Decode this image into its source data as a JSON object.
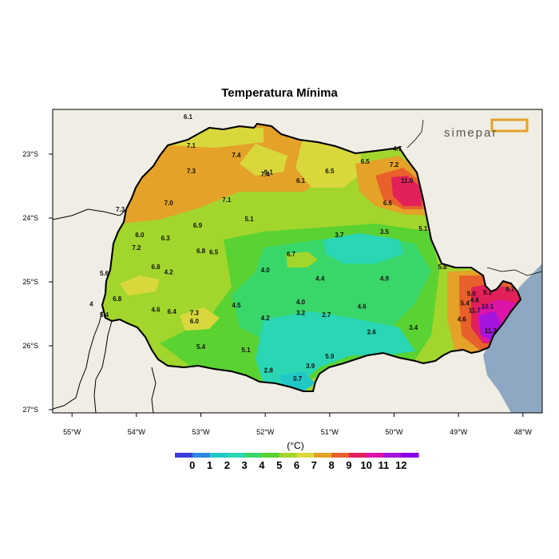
{
  "title": "Temperatura Mínima",
  "logo_text": "simepar",
  "colorbar": {
    "unit": "(°C)",
    "labels": [
      "0",
      "1",
      "2",
      "3",
      "4",
      "5",
      "6",
      "7",
      "8",
      "9",
      "10",
      "11",
      "12"
    ],
    "colors": [
      "#3c3cdc",
      "#2f86e0",
      "#22c8c8",
      "#2ad6b4",
      "#39d66a",
      "#5ad232",
      "#a2d62c",
      "#d8d83c",
      "#e4a228",
      "#e8602c",
      "#e2205a",
      "#dc14a8",
      "#a414dc",
      "#8a00e6"
    ]
  },
  "axes": {
    "x_ticks": [
      "55°W",
      "54°W",
      "53°W",
      "52°W",
      "51°W",
      "50°W",
      "49°W",
      "48°W"
    ],
    "y_ticks": [
      "23°S",
      "24°S",
      "25°S",
      "26°S",
      "27°S"
    ],
    "x_values": [
      -55,
      -54,
      -53,
      -52,
      -51,
      -50,
      -49,
      -48
    ],
    "y_values": [
      -23,
      -24,
      -25,
      -26,
      -27
    ],
    "lon_range": [
      -55.3,
      -47.7
    ],
    "lat_range": [
      -27.05,
      -22.3
    ]
  },
  "colors": {
    "ocean": "#8ea7c2",
    "land_outside": "#efede4",
    "border": "#000000"
  },
  "stations": [
    {
      "lon": -53.2,
      "lat": -22.45,
      "value": "6.1"
    },
    {
      "lon": -53.15,
      "lat": -22.9,
      "value": "7.1"
    },
    {
      "lon": -52.45,
      "lat": -23.05,
      "value": "7.4"
    },
    {
      "lon": -53.15,
      "lat": -23.3,
      "value": "7.3"
    },
    {
      "lon": -52.0,
      "lat": -23.35,
      "value": "7.4"
    },
    {
      "lon": -51.95,
      "lat": -23.32,
      "value": "9.1"
    },
    {
      "lon": -51.0,
      "lat": -23.3,
      "value": "6.5"
    },
    {
      "lon": -50.45,
      "lat": -23.15,
      "value": "6.5"
    },
    {
      "lon": -49.95,
      "lat": -22.95,
      "value": "4.7"
    },
    {
      "lon": -50.0,
      "lat": -23.2,
      "value": "7.2"
    },
    {
      "lon": -49.8,
      "lat": -23.45,
      "value": "11.0"
    },
    {
      "lon": -53.5,
      "lat": -23.8,
      "value": "7.0"
    },
    {
      "lon": -52.6,
      "lat": -23.75,
      "value": "7.1"
    },
    {
      "lon": -54.25,
      "lat": -23.9,
      "value": "7.3"
    },
    {
      "lon": -51.45,
      "lat": -23.45,
      "value": "6.1"
    },
    {
      "lon": -50.1,
      "lat": -23.8,
      "value": "6.6"
    },
    {
      "lon": -52.25,
      "lat": -24.05,
      "value": "5.1"
    },
    {
      "lon": -53.05,
      "lat": -24.15,
      "value": "6.9"
    },
    {
      "lon": -53.95,
      "lat": -24.3,
      "value": "6.0"
    },
    {
      "lon": -53.55,
      "lat": -24.35,
      "value": "6.3"
    },
    {
      "lon": -54.0,
      "lat": -24.5,
      "value": "7.2"
    },
    {
      "lon": -53.0,
      "lat": -24.55,
      "value": "6.8"
    },
    {
      "lon": -52.8,
      "lat": -24.57,
      "value": "6.5"
    },
    {
      "lon": -50.85,
      "lat": -24.3,
      "value": "3.7"
    },
    {
      "lon": -50.15,
      "lat": -24.25,
      "value": "3.5"
    },
    {
      "lon": -49.55,
      "lat": -24.2,
      "value": "5.1"
    },
    {
      "lon": -51.6,
      "lat": -24.6,
      "value": "6.7"
    },
    {
      "lon": -53.7,
      "lat": -24.8,
      "value": "6.8"
    },
    {
      "lon": -53.5,
      "lat": -24.88,
      "value": "4.2"
    },
    {
      "lon": -54.5,
      "lat": -24.9,
      "value": "5.6"
    },
    {
      "lon": -52.0,
      "lat": -24.85,
      "value": "4.0"
    },
    {
      "lon": -51.15,
      "lat": -24.98,
      "value": "4.4"
    },
    {
      "lon": -50.15,
      "lat": -24.98,
      "value": "4.9"
    },
    {
      "lon": -49.25,
      "lat": -24.8,
      "value": "5.8"
    },
    {
      "lon": -54.3,
      "lat": -25.3,
      "value": "6.8"
    },
    {
      "lon": -54.7,
      "lat": -25.38,
      "value": "4"
    },
    {
      "lon": -54.5,
      "lat": -25.55,
      "value": "5.4"
    },
    {
      "lon": -53.7,
      "lat": -25.47,
      "value": "4.6"
    },
    {
      "lon": -53.45,
      "lat": -25.5,
      "value": "6.4"
    },
    {
      "lon": -53.1,
      "lat": -25.52,
      "value": "7.3"
    },
    {
      "lon": -53.1,
      "lat": -25.65,
      "value": "6.0"
    },
    {
      "lon": -52.45,
      "lat": -25.4,
      "value": "4.5"
    },
    {
      "lon": -51.45,
      "lat": -25.35,
      "value": "4.0"
    },
    {
      "lon": -51.45,
      "lat": -25.52,
      "value": "3.2"
    },
    {
      "lon": -51.05,
      "lat": -25.55,
      "value": "2.7"
    },
    {
      "lon": -50.5,
      "lat": -25.42,
      "value": "4.6"
    },
    {
      "lon": -52.0,
      "lat": -25.6,
      "value": "4.2"
    },
    {
      "lon": -50.35,
      "lat": -25.82,
      "value": "2.6"
    },
    {
      "lon": -49.7,
      "lat": -25.75,
      "value": "3.4"
    },
    {
      "lon": -48.95,
      "lat": -25.62,
      "value": "4.6"
    },
    {
      "lon": -48.9,
      "lat": -25.37,
      "value": "5.4"
    },
    {
      "lon": -48.8,
      "lat": -25.22,
      "value": "5.0"
    },
    {
      "lon": -48.75,
      "lat": -25.32,
      "value": "4.6"
    },
    {
      "lon": -48.55,
      "lat": -25.2,
      "value": "9.1"
    },
    {
      "lon": -48.2,
      "lat": -25.15,
      "value": "9.7"
    },
    {
      "lon": -48.55,
      "lat": -25.42,
      "value": "10.1"
    },
    {
      "lon": -48.75,
      "lat": -25.48,
      "value": "11.7"
    },
    {
      "lon": -48.5,
      "lat": -25.8,
      "value": "11.2"
    },
    {
      "lon": -53.0,
      "lat": -26.05,
      "value": "5.4"
    },
    {
      "lon": -52.3,
      "lat": -26.1,
      "value": "5.1"
    },
    {
      "lon": -51.0,
      "lat": -26.2,
      "value": "5.9"
    },
    {
      "lon": -51.3,
      "lat": -26.35,
      "value": "3.9"
    },
    {
      "lon": -51.95,
      "lat": -26.42,
      "value": "2.8"
    },
    {
      "lon": -51.5,
      "lat": -26.55,
      "value": "0.7"
    }
  ]
}
